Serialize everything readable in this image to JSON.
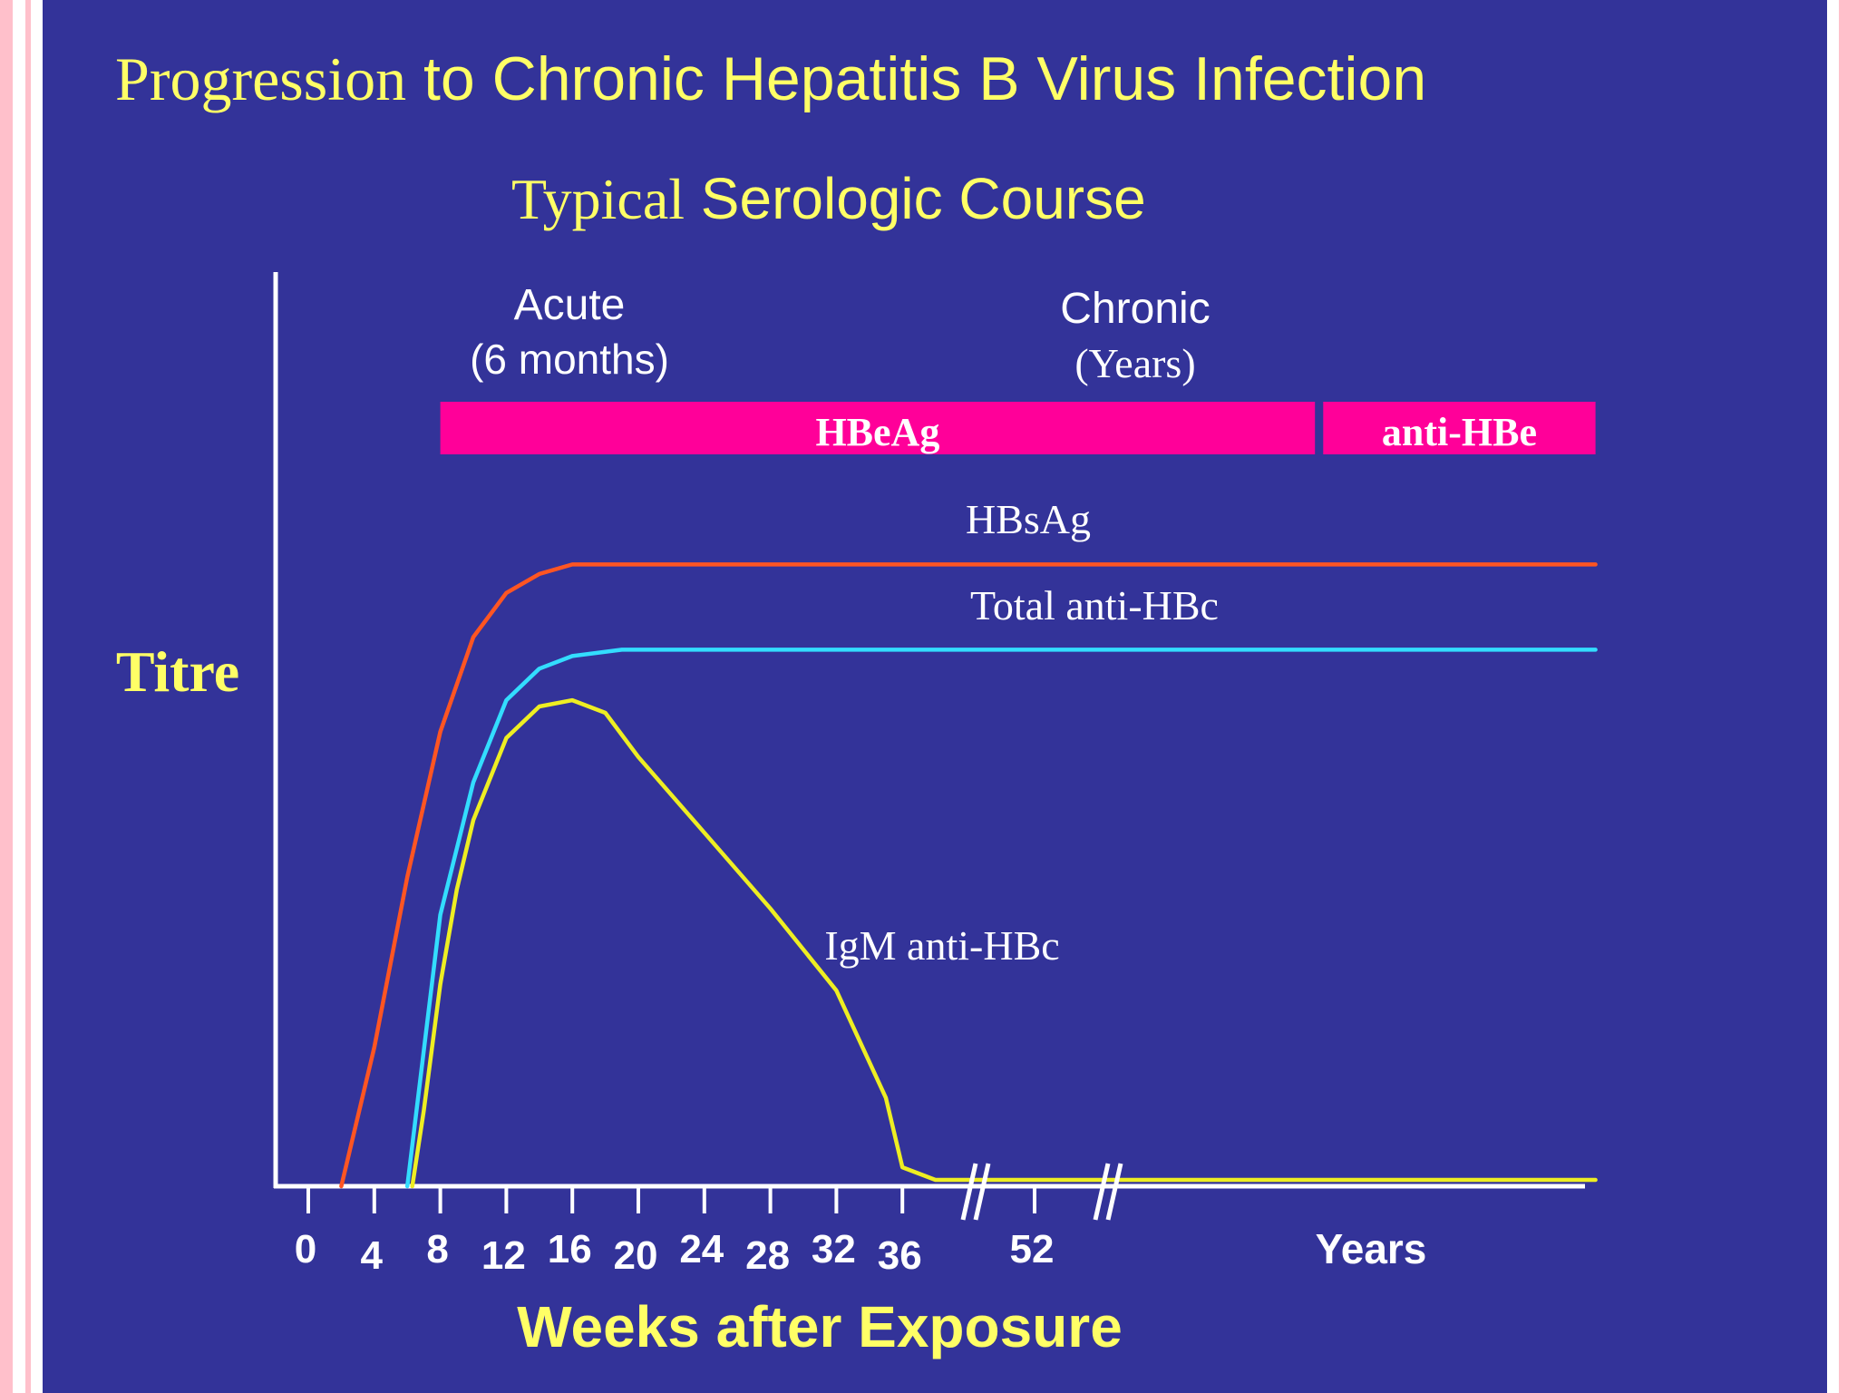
{
  "title": {
    "serif_part": "Progression",
    "sans_part": "to Chronic Hepatitis B Virus Infection"
  },
  "subtitle": {
    "serif_part": "Typical",
    "sans_part": "Serologic Course"
  },
  "colors": {
    "background": "#333399",
    "text": "#ffff66",
    "band": "#ff0099",
    "hbsag": "#ff5522",
    "total_anti_hbc": "#33ddff",
    "igm_anti_hbc": "#eeee22",
    "frame": "#ffc0cb"
  },
  "chart_data": {
    "type": "line",
    "ylabel": "Titre",
    "xlabel": "Weeks after Exposure",
    "x_ticks": [
      "0",
      "4",
      "8",
      "12",
      "16",
      "20",
      "24",
      "28",
      "32",
      "36",
      "52"
    ],
    "x_tail_label": "Years",
    "axis_break": "//",
    "grid": false,
    "phases": [
      {
        "label": "Acute",
        "sublabel": "(6 months)"
      },
      {
        "label": "Chronic",
        "sublabel": "(Years)"
      }
    ],
    "bands": [
      {
        "label": "HBeAg",
        "from_week": 8,
        "to_week": 61
      },
      {
        "label": "anti-HBe",
        "from_week": 61.5,
        "to_week": 78
      }
    ],
    "series": [
      {
        "name": "HBsAg",
        "points": [
          [
            2,
            0
          ],
          [
            4,
            0.22
          ],
          [
            6,
            0.49
          ],
          [
            8,
            0.72
          ],
          [
            10,
            0.87
          ],
          [
            12,
            0.94
          ],
          [
            14,
            0.97
          ],
          [
            16,
            0.985
          ],
          [
            20,
            0.985
          ],
          [
            30,
            0.985
          ],
          [
            40,
            0.985
          ],
          [
            52,
            0.985
          ],
          [
            60,
            0.985
          ],
          [
            70,
            0.985
          ],
          [
            78,
            0.985
          ]
        ]
      },
      {
        "name": "Total anti-HBc",
        "points": [
          [
            6,
            0
          ],
          [
            8,
            0.43
          ],
          [
            10,
            0.64
          ],
          [
            12,
            0.77
          ],
          [
            14,
            0.82
          ],
          [
            16,
            0.84
          ],
          [
            19,
            0.85
          ],
          [
            30,
            0.85
          ],
          [
            40,
            0.85
          ],
          [
            52,
            0.85
          ],
          [
            60,
            0.85
          ],
          [
            70,
            0.85
          ],
          [
            78,
            0.85
          ]
        ]
      },
      {
        "name": "IgM anti-HBc",
        "points": [
          [
            6.3,
            0
          ],
          [
            7,
            0.12
          ],
          [
            8,
            0.32
          ],
          [
            9,
            0.47
          ],
          [
            10,
            0.58
          ],
          [
            12,
            0.71
          ],
          [
            14,
            0.76
          ],
          [
            16,
            0.77
          ],
          [
            18,
            0.75
          ],
          [
            20,
            0.68
          ],
          [
            24,
            0.56
          ],
          [
            28,
            0.44
          ],
          [
            32,
            0.31
          ],
          [
            35,
            0.14
          ],
          [
            36,
            0.03
          ],
          [
            38,
            0.01
          ],
          [
            40,
            0.01
          ],
          [
            52,
            0.01
          ],
          [
            60,
            0.01
          ],
          [
            70,
            0.01
          ],
          [
            78,
            0.01
          ]
        ]
      }
    ]
  }
}
